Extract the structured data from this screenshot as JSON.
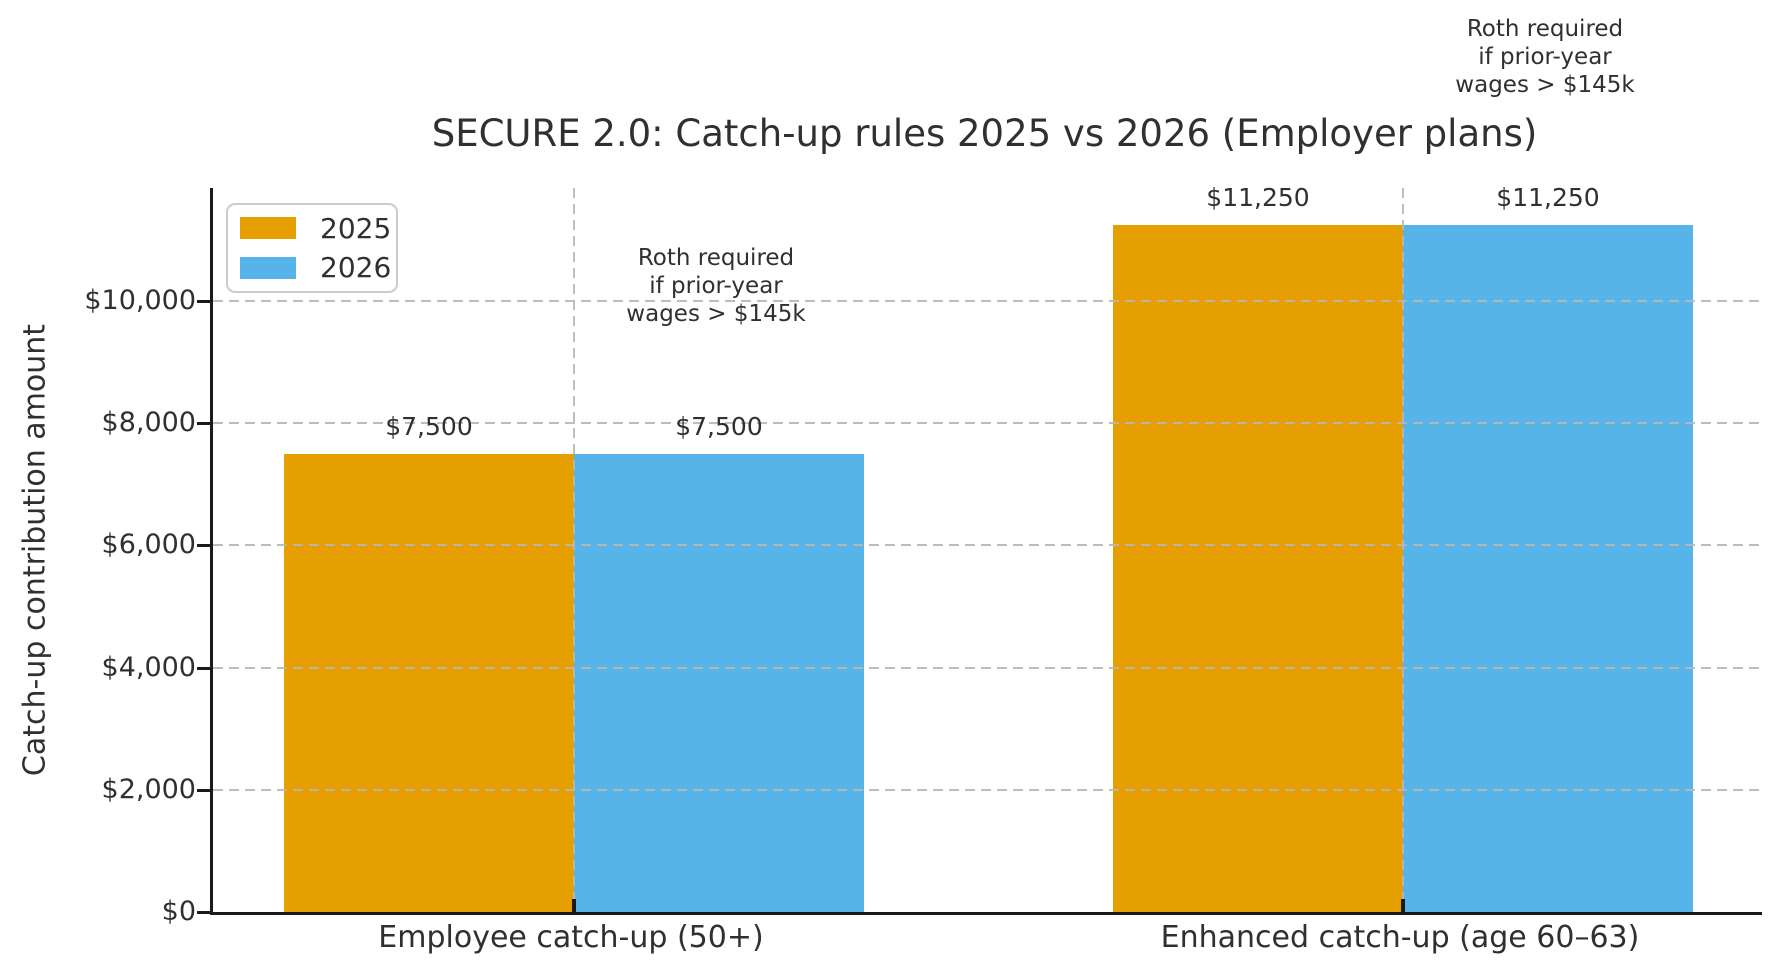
{
  "chart_data": {
    "type": "bar",
    "title": "SECURE 2.0: Catch-up rules 2025 vs 2026 (Employer plans)",
    "ylabel": "Catch-up contribution amount",
    "xlabel": "",
    "categories": [
      "Employee catch-up (50+)",
      "Enhanced catch-up (age 60–63)"
    ],
    "series": [
      {
        "name": "2025",
        "color": "#E69F00",
        "values": [
          7500,
          11250
        ],
        "bar_labels": [
          "$7,500",
          "$11,250"
        ]
      },
      {
        "name": "2026",
        "color": "#56B4E9",
        "values": [
          7500,
          11250
        ],
        "bar_labels": [
          "$7,500",
          "$11,250"
        ]
      }
    ],
    "yticks": [
      0,
      2000,
      4000,
      6000,
      8000,
      10000
    ],
    "ytick_labels": [
      "$0",
      "$2,000",
      "$4,000",
      "$6,000",
      "$8,000",
      "$10,000"
    ],
    "ylim": [
      0,
      11850
    ],
    "grid": {
      "style": "dashed",
      "horizontal": true,
      "vertical_at_category_centers": true,
      "color": "#c9c9c9"
    },
    "legend": {
      "position": "upper-left",
      "entries": [
        "2025",
        "2026"
      ]
    },
    "annotations": [
      {
        "lines": [
          "Roth required",
          "if prior-year",
          "wages > $145k"
        ]
      },
      {
        "lines": [
          "Roth required",
          "if prior-year",
          "wages > $145k"
        ]
      }
    ],
    "text_color": "#303030",
    "spine_color": "#1a1a1a"
  }
}
